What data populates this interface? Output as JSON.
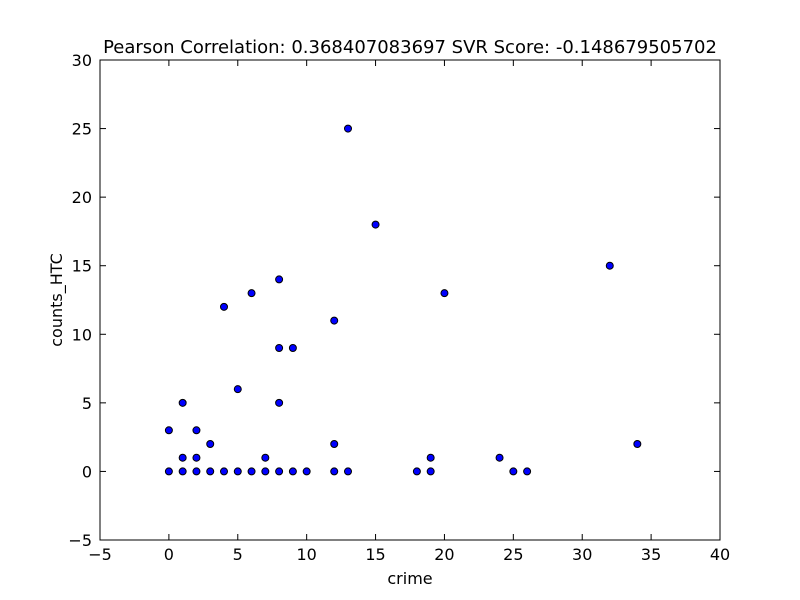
{
  "chart_data": {
    "type": "scatter",
    "title": "Pearson Correlation: 0.368407083697  SVR Score: -0.148679505702",
    "xlabel": "crime",
    "ylabel": "counts_HTC",
    "xlim": [
      -5,
      40
    ],
    "ylim": [
      -5,
      30
    ],
    "xticks": [
      -5,
      0,
      5,
      10,
      15,
      20,
      25,
      30,
      35,
      40
    ],
    "yticks": [
      -5,
      0,
      5,
      10,
      15,
      20,
      25,
      30
    ],
    "grid": false,
    "marker_color": "#0000ff",
    "marker_edge_color": "#000000",
    "points": [
      {
        "x": 0,
        "y": 0
      },
      {
        "x": 0,
        "y": 3
      },
      {
        "x": 1,
        "y": 0
      },
      {
        "x": 1,
        "y": 1
      },
      {
        "x": 1,
        "y": 5
      },
      {
        "x": 2,
        "y": 0
      },
      {
        "x": 2,
        "y": 1
      },
      {
        "x": 2,
        "y": 3
      },
      {
        "x": 3,
        "y": 0
      },
      {
        "x": 3,
        "y": 2
      },
      {
        "x": 4,
        "y": 0
      },
      {
        "x": 4,
        "y": 12
      },
      {
        "x": 5,
        "y": 0
      },
      {
        "x": 5,
        "y": 6
      },
      {
        "x": 6,
        "y": 0
      },
      {
        "x": 6,
        "y": 13
      },
      {
        "x": 7,
        "y": 0
      },
      {
        "x": 7,
        "y": 1
      },
      {
        "x": 8,
        "y": 0
      },
      {
        "x": 8,
        "y": 5
      },
      {
        "x": 8,
        "y": 9
      },
      {
        "x": 8,
        "y": 14
      },
      {
        "x": 9,
        "y": 0
      },
      {
        "x": 9,
        "y": 9
      },
      {
        "x": 10,
        "y": 0
      },
      {
        "x": 12,
        "y": 0
      },
      {
        "x": 12,
        "y": 2
      },
      {
        "x": 12,
        "y": 11
      },
      {
        "x": 13,
        "y": 0
      },
      {
        "x": 13,
        "y": 25
      },
      {
        "x": 15,
        "y": 18
      },
      {
        "x": 18,
        "y": 0
      },
      {
        "x": 19,
        "y": 0
      },
      {
        "x": 19,
        "y": 1
      },
      {
        "x": 20,
        "y": 13
      },
      {
        "x": 24,
        "y": 1
      },
      {
        "x": 25,
        "y": 0
      },
      {
        "x": 26,
        "y": 0
      },
      {
        "x": 32,
        "y": 15
      },
      {
        "x": 34,
        "y": 2
      }
    ]
  }
}
